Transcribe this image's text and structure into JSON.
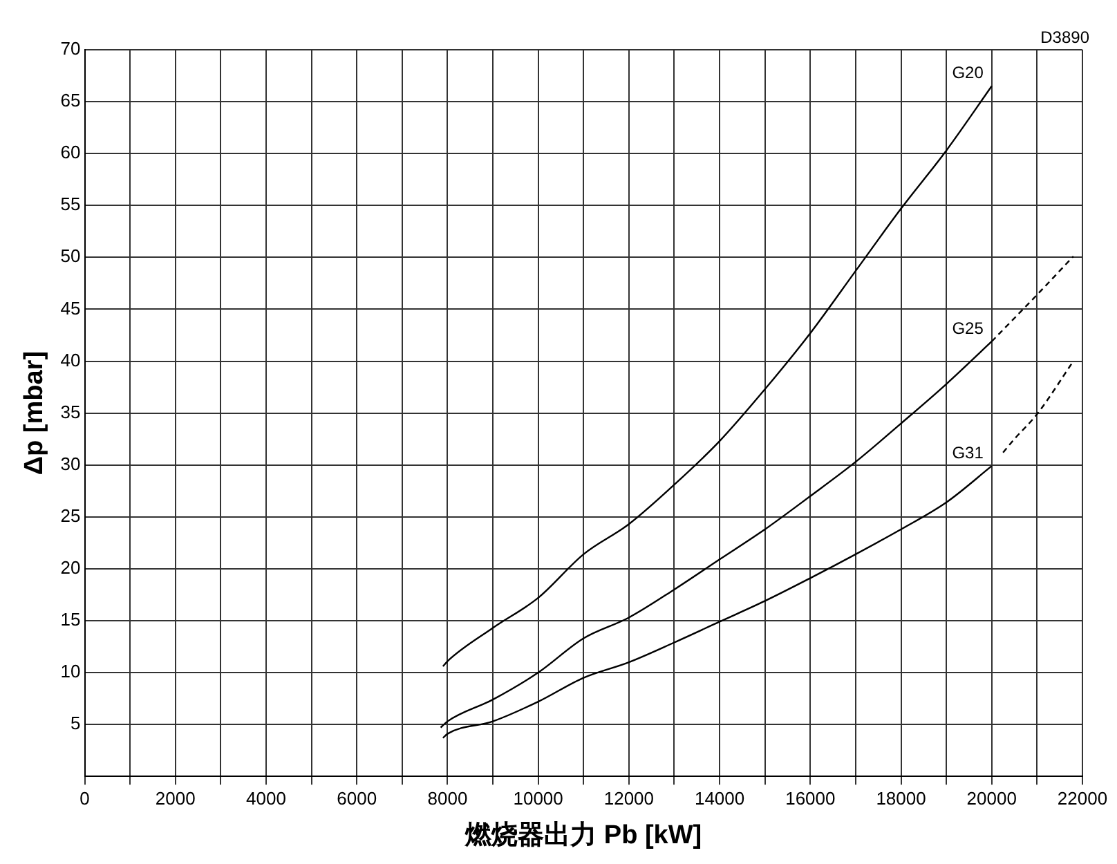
{
  "chart_data": {
    "type": "line",
    "xlabel": "燃烧器出力 Pb [kW]",
    "ylabel": "Δp [mbar]",
    "annotations": [
      "D3890"
    ],
    "xlim": [
      0,
      22000
    ],
    "ylim": [
      0,
      70
    ],
    "xticks": [
      0,
      {
        "value": 1000,
        "label": null
      },
      2000,
      {
        "value": 3000,
        "label": null
      },
      4000,
      {
        "value": 5000,
        "label": null
      },
      6000,
      {
        "value": 7000,
        "label": null
      },
      8000,
      {
        "value": 9000,
        "label": null
      },
      10000,
      {
        "value": 11000,
        "label": null
      },
      12000,
      {
        "value": 13000,
        "label": null
      },
      14000,
      {
        "value": 15000,
        "label": null
      },
      16000,
      {
        "value": 17000,
        "label": null
      },
      18000,
      {
        "value": 19000,
        "label": null
      },
      20000,
      {
        "value": 21000,
        "label": null
      },
      22000
    ],
    "yticks": [
      {
        "value": 0,
        "label": null
      },
      5,
      10,
      15,
      20,
      25,
      30,
      35,
      40,
      45,
      50,
      55,
      60,
      65,
      70
    ],
    "grid": true,
    "legend": false,
    "marker": "none",
    "line_style": "solid",
    "series": [
      {
        "name": "G20",
        "color": "#000000",
        "x": [
          7900,
          8000,
          9000,
          10000,
          11000,
          12000,
          13000,
          14000,
          15000,
          16000,
          17000,
          18000,
          19000,
          20000
        ],
        "values": [
          10.6,
          11.1,
          14.3,
          17.2,
          21.4,
          24.3,
          28.1,
          32.3,
          37.3,
          42.7,
          48.7,
          54.7,
          60.3,
          66.5
        ]
      },
      {
        "name": "G25",
        "color": "#000000",
        "x": [
          7850,
          8000,
          9000,
          10000,
          11000,
          12000,
          13000,
          14000,
          15000,
          16000,
          17000,
          18000,
          19000,
          20000
        ],
        "values": [
          4.7,
          5.3,
          7.4,
          10.0,
          13.3,
          15.3,
          18.0,
          20.9,
          23.8,
          27.0,
          30.3,
          34.0,
          37.8,
          41.9
        ]
      },
      {
        "name": "G31",
        "color": "#000000",
        "x": [
          7900,
          8000,
          9000,
          10000,
          11000,
          12000,
          13000,
          14000,
          15000,
          16000,
          17000,
          18000,
          19000,
          20000
        ],
        "values": [
          3.7,
          4.1,
          5.3,
          7.2,
          9.5,
          11.0,
          12.9,
          14.9,
          16.9,
          19.1,
          21.4,
          23.8,
          26.4,
          29.9
        ]
      },
      {
        "color": "#000000",
        "line_style": "dashed",
        "x": [
          20000,
          21000,
          21800
        ],
        "values": [
          41.9,
          46.4,
          50.1
        ]
      },
      {
        "color": "#000000",
        "line_style": "dashed",
        "x": [
          20250,
          20500,
          21000,
          21800
        ],
        "values": [
          31.2,
          32.5,
          34.9,
          40.0
        ]
      }
    ]
  }
}
